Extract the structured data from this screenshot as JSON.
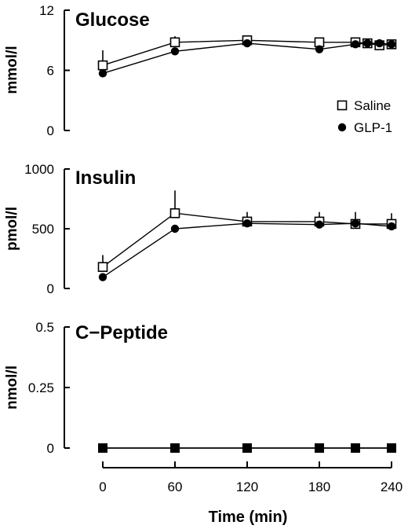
{
  "chart_data": [
    {
      "type": "line",
      "title": "Glucose",
      "ylabel": "mmol/l",
      "xlabel": "",
      "x": [
        0,
        60,
        120,
        180,
        210,
        220,
        230,
        240
      ],
      "xlim": [
        0,
        240
      ],
      "ylim": [
        0,
        12
      ],
      "y_ticks": [
        0,
        6,
        12
      ],
      "y_tick_labels": [
        "0",
        "6",
        "12"
      ],
      "legend": {
        "placement": "bottom-right",
        "entries": [
          {
            "label": "Saline",
            "marker": "open-square"
          },
          {
            "label": "GLP-1",
            "marker": "filled-circle"
          }
        ]
      },
      "series": [
        {
          "name": "Saline",
          "marker": "open-square",
          "values": [
            6.5,
            8.8,
            9.0,
            8.8,
            8.8,
            8.7,
            8.5,
            8.6
          ],
          "error_up": [
            1.5,
            0.6,
            0.4,
            0.4,
            0.3,
            0.3,
            0.3,
            0.3
          ]
        },
        {
          "name": "GLP-1",
          "marker": "filled-circle",
          "values": [
            5.7,
            7.9,
            8.7,
            8.1,
            8.6,
            8.7,
            8.7,
            8.6
          ],
          "error_up": [
            0,
            0,
            0,
            0,
            0,
            0,
            0,
            0
          ]
        }
      ]
    },
    {
      "type": "line",
      "title": "Insulin",
      "ylabel": "pmol/l",
      "xlabel": "",
      "x": [
        0,
        60,
        120,
        180,
        210,
        240
      ],
      "xlim": [
        0,
        240
      ],
      "ylim": [
        0,
        1000
      ],
      "y_ticks": [
        0,
        500,
        1000
      ],
      "y_tick_labels": [
        "0",
        "500",
        "1000"
      ],
      "series": [
        {
          "name": "Saline",
          "marker": "open-square",
          "values": [
            180,
            630,
            560,
            560,
            540,
            540
          ],
          "error_up": [
            100,
            190,
            80,
            80,
            100,
            90
          ]
        },
        {
          "name": "GLP-1",
          "marker": "filled-circle",
          "values": [
            95,
            500,
            545,
            535,
            545,
            520
          ],
          "error_up": [
            0,
            0,
            0,
            0,
            0,
            0
          ]
        }
      ]
    },
    {
      "type": "line",
      "title": "C−Peptide",
      "ylabel": "nmol/l",
      "xlabel": "Time  (min)",
      "x": [
        0,
        60,
        120,
        180,
        210,
        240
      ],
      "xlim": [
        0,
        240
      ],
      "ylim": [
        0,
        0.5
      ],
      "y_ticks": [
        0,
        0.25,
        0.5
      ],
      "y_tick_labels": [
        "0",
        "0.25",
        "0.5"
      ],
      "x_ticks": [
        0,
        60,
        120,
        180,
        240
      ],
      "x_tick_labels": [
        "0",
        "60",
        "120",
        "180",
        "240"
      ],
      "series": [
        {
          "name": "Saline",
          "marker": "filled-square",
          "values": [
            0,
            0,
            0,
            0,
            0,
            0
          ],
          "error_up": [
            0,
            0,
            0,
            0,
            0,
            0
          ]
        },
        {
          "name": "GLP-1",
          "marker": "filled-circle",
          "values": [
            0,
            0,
            0,
            0,
            0,
            0
          ],
          "error_up": [
            0,
            0,
            0,
            0,
            0,
            0
          ]
        }
      ]
    }
  ]
}
